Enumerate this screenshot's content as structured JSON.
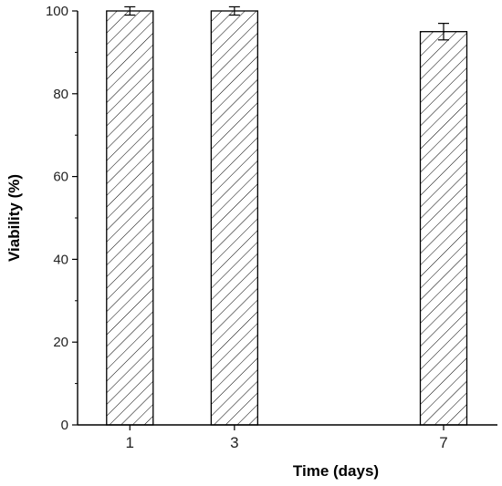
{
  "chart_data": {
    "type": "bar",
    "title": "",
    "xlabel": "Time (days)",
    "ylabel": "Viability (%)",
    "x_scale": "linear",
    "ylim": [
      0,
      100
    ],
    "y_ticks": [
      0,
      20,
      40,
      60,
      80,
      100
    ],
    "categories": [
      "1",
      "3",
      "7"
    ],
    "x": [
      1,
      3,
      7
    ],
    "values": [
      100,
      100,
      95
    ],
    "errors": [
      1,
      1,
      2
    ],
    "bar_fill": "hatched",
    "bar_color": "#000000",
    "grid": false,
    "legend": "none"
  }
}
